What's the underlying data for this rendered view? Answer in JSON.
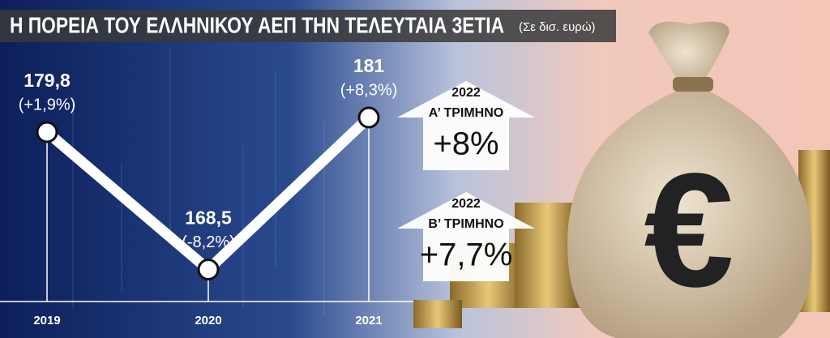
{
  "chart_data": {
    "type": "line",
    "title": "Η ΠΟΡΕΙΑ ΤΟΥ ΕΛΛΗΝΙΚΟΥ ΑΕΠ ΤΗΝ ΤΕΛΕΥΤΑΙΑ 3ΕΤΙΑ",
    "subtitle": "(Σε δισ. ευρώ)",
    "categories": [
      "2019",
      "2020",
      "2021"
    ],
    "values": [
      179.8,
      168.5,
      181
    ],
    "value_labels": [
      "179,8",
      "168,5",
      "181"
    ],
    "annotations": [
      "(+1,9%)",
      "(-8,2%)",
      "(+8,3%)"
    ],
    "callouts": [
      {
        "year": "2022",
        "label": "Α’ ΤΡΙΜΗΝΟ",
        "value": "+8%"
      },
      {
        "year": "2022",
        "label": "Β’ ΤΡΙΜΗΝΟ",
        "value": "+7,7%"
      }
    ],
    "ylim": [
      166,
      186
    ],
    "color": "#ffffff"
  }
}
